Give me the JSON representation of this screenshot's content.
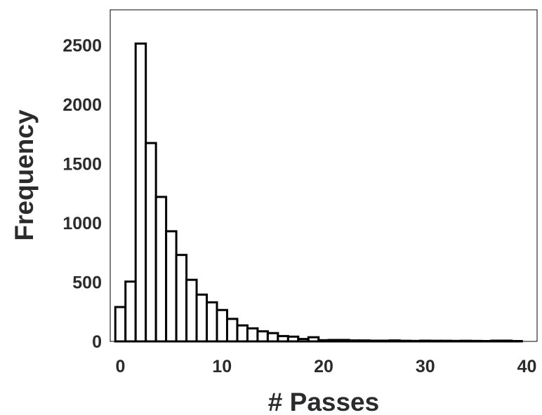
{
  "chart_data": {
    "type": "bar",
    "title": "",
    "xlabel": "# Passes",
    "ylabel": "Frequency",
    "xlim": [
      -1,
      41
    ],
    "ylim": [
      0,
      2800
    ],
    "bin_width": 1,
    "xticks": [
      "0",
      "10",
      "20",
      "30",
      "40"
    ],
    "yticks": [
      "0",
      "500",
      "1000",
      "1500",
      "2000",
      "2500"
    ],
    "bin_centers": [
      0,
      1,
      2,
      3,
      4,
      5,
      6,
      7,
      8,
      9,
      10,
      11,
      12,
      13,
      14,
      15,
      16,
      17,
      18,
      19,
      20,
      21,
      22,
      23,
      24,
      25,
      26,
      27,
      28,
      29,
      30,
      31,
      32,
      33,
      34,
      35,
      36,
      37,
      38,
      39
    ],
    "values": [
      290,
      505,
      2515,
      1675,
      1220,
      930,
      730,
      520,
      395,
      330,
      265,
      190,
      135,
      110,
      85,
      70,
      45,
      40,
      20,
      35,
      10,
      12,
      12,
      8,
      8,
      6,
      6,
      8,
      5,
      4,
      6,
      5,
      5,
      4,
      5,
      4,
      3,
      6,
      6,
      3
    ],
    "grid": false,
    "legend": "none",
    "bar_fill": "#ffffff",
    "bar_edge": "#000000"
  }
}
